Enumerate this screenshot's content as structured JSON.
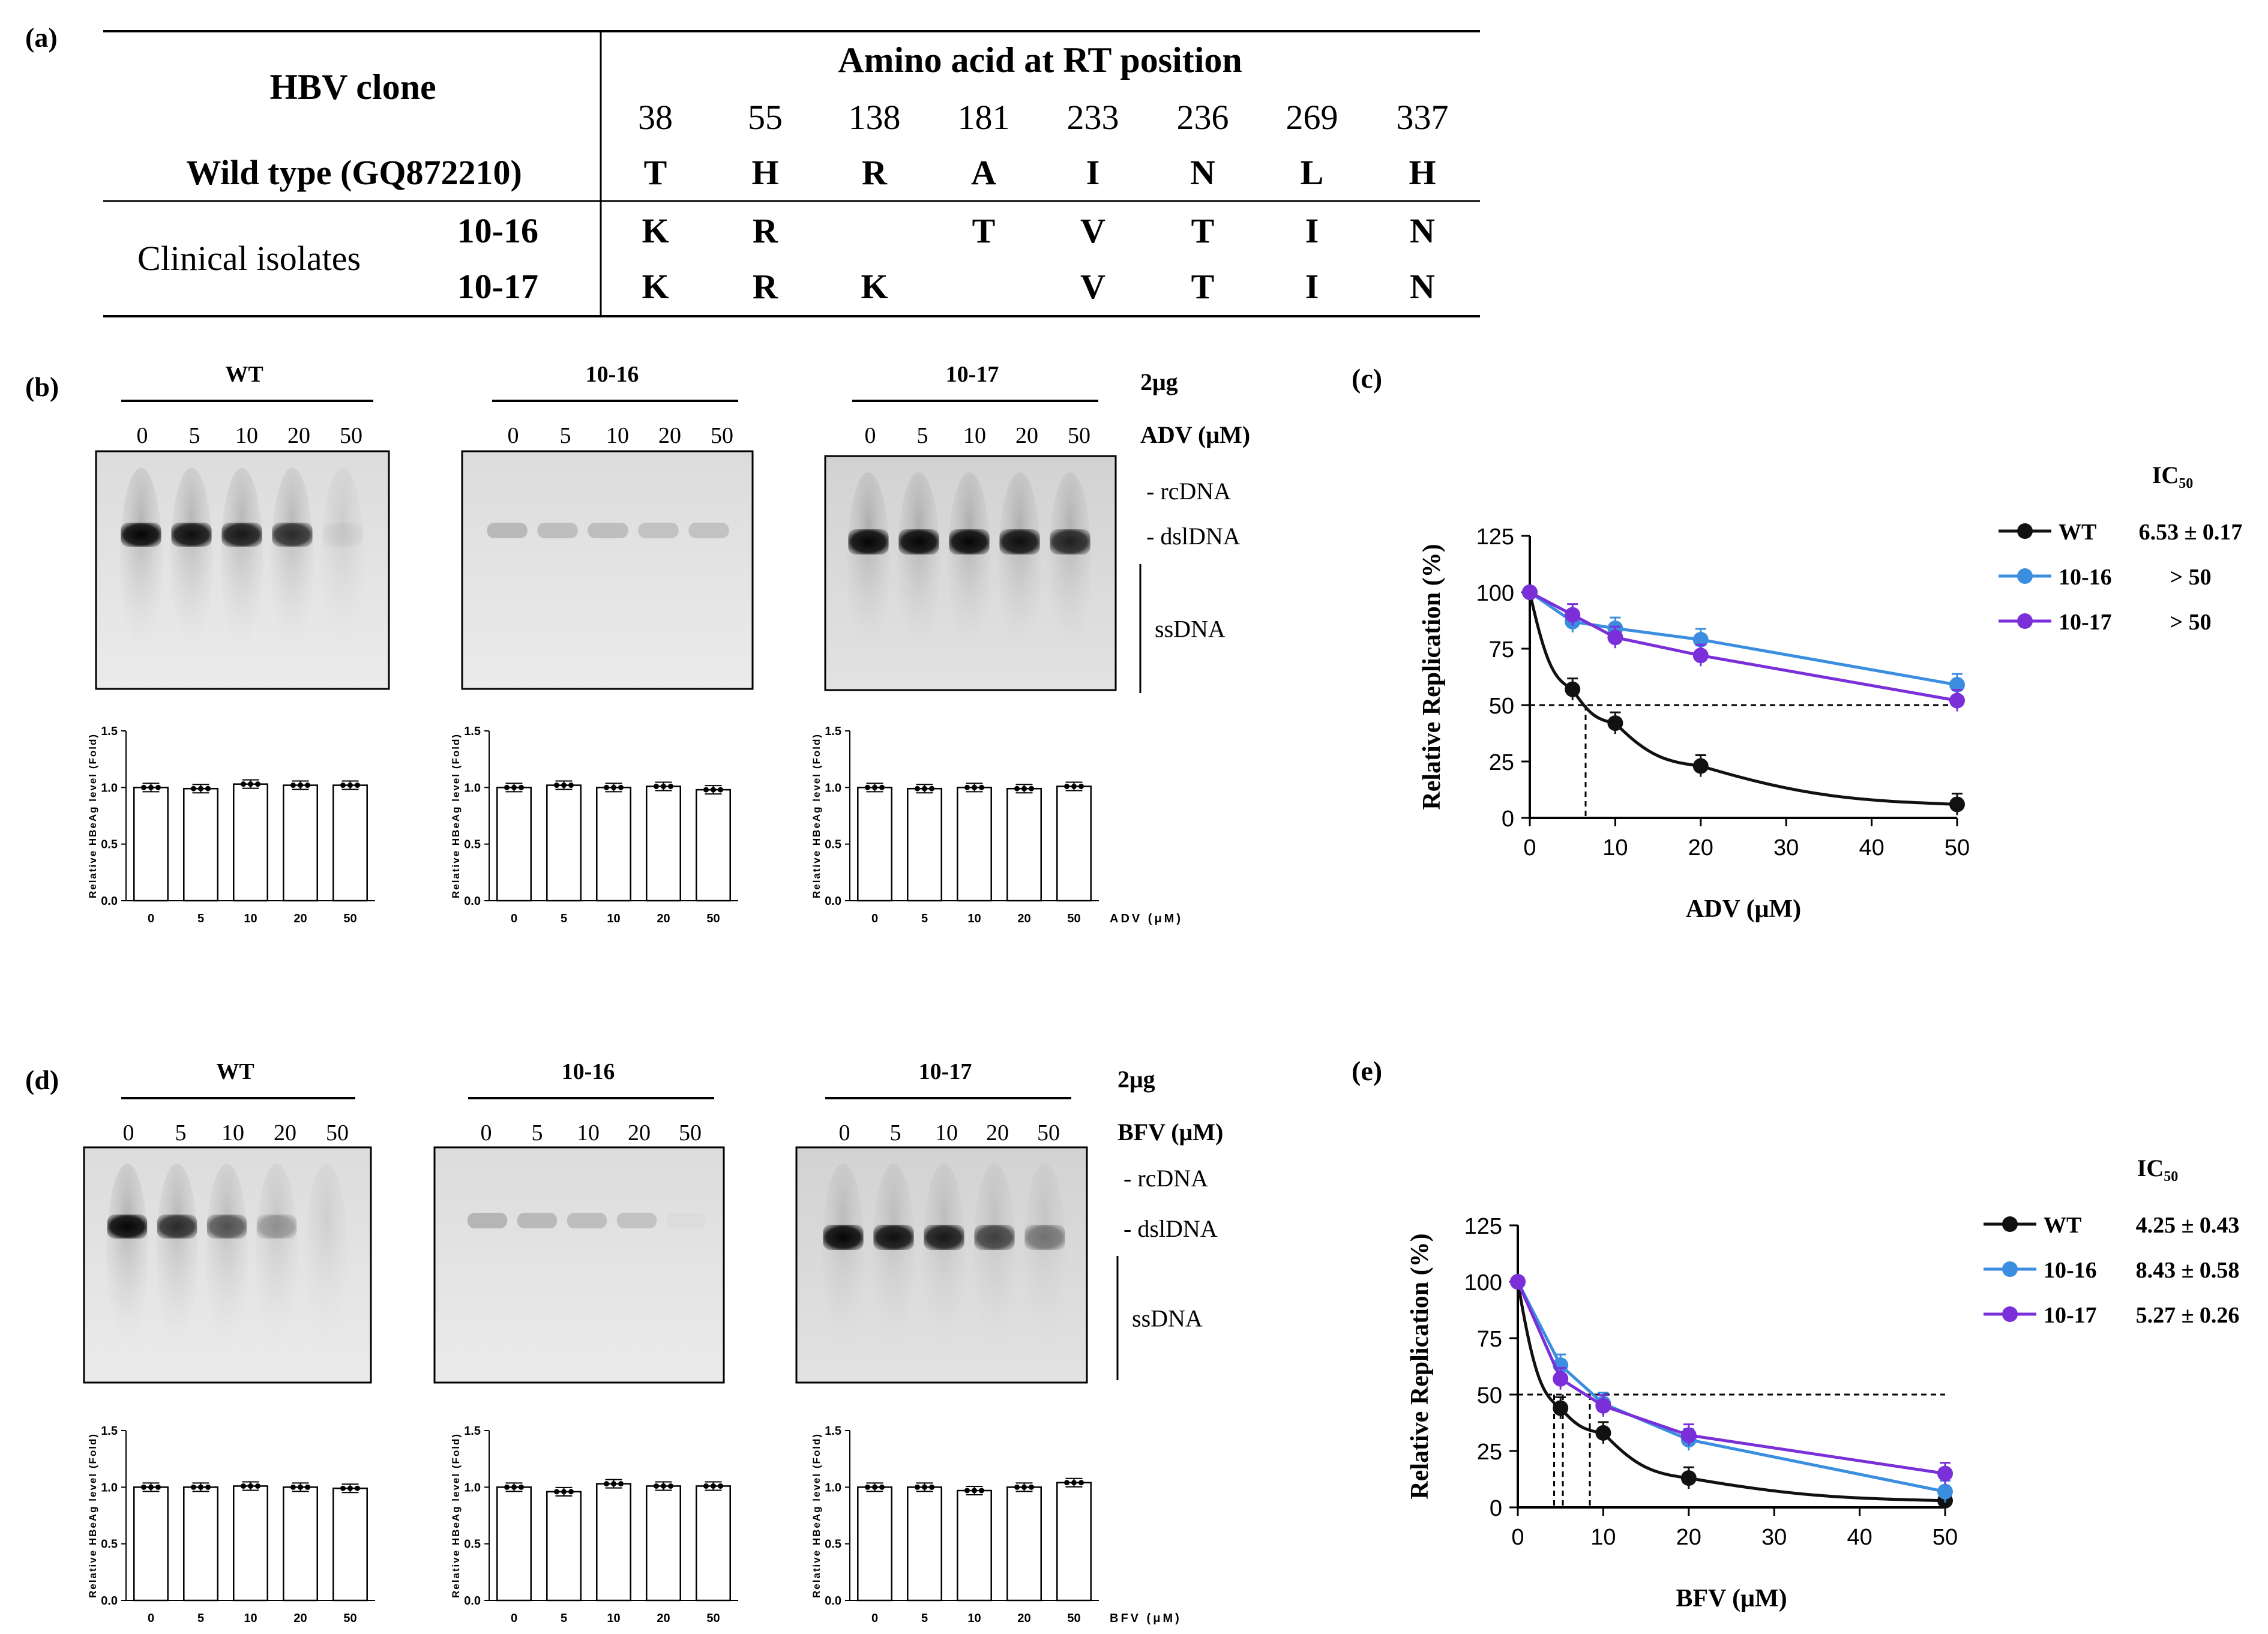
{
  "panels": {
    "a": "(a)",
    "b": "(b)",
    "c": "(c)",
    "d": "(d)",
    "e": "(e)"
  },
  "table": {
    "clone_header": "HBV clone",
    "aa_header": "Amino acid at RT position",
    "positions": [
      "38",
      "55",
      "138",
      "181",
      "233",
      "236",
      "269",
      "337"
    ],
    "wt_label": "Wild type (GQ872210)",
    "wt_values": [
      "T",
      "H",
      "R",
      "A",
      "I",
      "N",
      "L",
      "H"
    ],
    "clinical_label": "Clinical isolates",
    "isolates": [
      {
        "id": "10-16",
        "values": [
          "K",
          "R",
          "",
          "T",
          "V",
          "T",
          "I",
          "N"
        ]
      },
      {
        "id": "10-17",
        "values": [
          "K",
          "R",
          "K",
          "",
          "V",
          "T",
          "I",
          "N"
        ]
      }
    ]
  },
  "blot_b": {
    "clones": [
      "WT",
      "10-16",
      "10-17"
    ],
    "doses": [
      "0",
      "5",
      "10",
      "20",
      "50"
    ],
    "amount": "2μg",
    "drug_label": "ADV (μM)",
    "bands": [
      "- rcDNA",
      "- dslDNA",
      "ssDNA"
    ],
    "hbeag_ylabel": "Relative HBeAg level (Fold)",
    "hbeag_xlabel": "ADV (μM)",
    "hbeag_ticks": [
      "0.0",
      "0.5",
      "1.0",
      "1.5"
    ],
    "hbeag_values": [
      [
        1.0,
        0.99,
        1.03,
        1.02,
        1.02
      ],
      [
        1.0,
        1.02,
        1.0,
        1.01,
        0.98
      ],
      [
        1.0,
        0.99,
        1.0,
        0.99,
        1.01
      ]
    ]
  },
  "blot_d": {
    "clones": [
      "WT",
      "10-16",
      "10-17"
    ],
    "doses": [
      "0",
      "5",
      "10",
      "20",
      "50"
    ],
    "amount": "2μg",
    "drug_label": "BFV  (μM)",
    "bands": [
      "- rcDNA",
      "- dslDNA",
      "ssDNA"
    ],
    "hbeag_ylabel": "Relative HBeAg level (Fold)",
    "hbeag_xlabel": "BFV (μM)",
    "hbeag_ticks": [
      "0.0",
      "0.5",
      "1.0",
      "1.5"
    ],
    "hbeag_values": [
      [
        1.0,
        1.0,
        1.01,
        1.0,
        0.99
      ],
      [
        1.0,
        0.96,
        1.03,
        1.01,
        1.01
      ],
      [
        1.0,
        1.0,
        0.97,
        1.0,
        1.04
      ]
    ]
  },
  "chart_data": [
    {
      "type": "line",
      "panel": "c",
      "title": "",
      "xlabel": "ADV (μM)",
      "ylabel": "Relative Replication (%)",
      "xlim": [
        0,
        50
      ],
      "ylim": [
        0,
        125
      ],
      "xticks": [
        "0",
        "10",
        "20",
        "30",
        "40",
        "50"
      ],
      "yticks": [
        "0",
        "25",
        "50",
        "75",
        "100",
        "125"
      ],
      "legend_title": "IC₅₀",
      "x": [
        0,
        5,
        10,
        20,
        50
      ],
      "series": [
        {
          "name": "WT",
          "ic50": "6.53 ± 0.17",
          "color": "#111111",
          "values": [
            100,
            57,
            42,
            23,
            6
          ]
        },
        {
          "name": "10-16",
          "ic50": "> 50",
          "color": "#3b8de0",
          "values": [
            100,
            87,
            84,
            79,
            59
          ]
        },
        {
          "name": "10-17",
          "ic50": "> 50",
          "color": "#7a2fd8",
          "values": [
            100,
            90,
            80,
            72,
            52
          ]
        }
      ],
      "ic50_line_y": 50,
      "ic50_drop_x": [
        6.53
      ]
    },
    {
      "type": "line",
      "panel": "e",
      "title": "",
      "xlabel": "BFV (μM)",
      "ylabel": "Relative Replication (%)",
      "xlim": [
        0,
        50
      ],
      "ylim": [
        0,
        125
      ],
      "xticks": [
        "0",
        "10",
        "20",
        "30",
        "40",
        "50"
      ],
      "yticks": [
        "0",
        "25",
        "50",
        "75",
        "100",
        "125"
      ],
      "legend_title": "IC₅₀",
      "x": [
        0,
        5,
        10,
        20,
        50
      ],
      "series": [
        {
          "name": "WT",
          "ic50": "4.25 ± 0.43",
          "color": "#111111",
          "values": [
            100,
            44,
            33,
            13,
            3
          ]
        },
        {
          "name": "10-16",
          "ic50": "8.43 ± 0.58",
          "color": "#3b8de0",
          "values": [
            100,
            63,
            46,
            30,
            7
          ]
        },
        {
          "name": "10-17",
          "ic50": "5.27 ± 0.26",
          "color": "#7a2fd8",
          "values": [
            100,
            57,
            45,
            32,
            15
          ]
        }
      ],
      "ic50_line_y": 50,
      "ic50_drop_x": [
        4.25,
        5.27,
        8.43
      ]
    }
  ]
}
